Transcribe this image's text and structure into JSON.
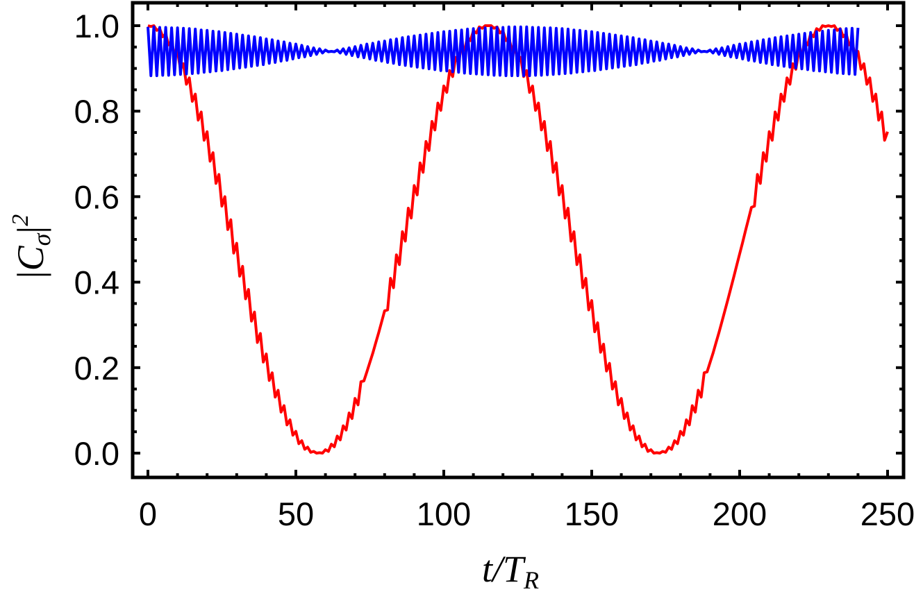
{
  "chart_data": {
    "type": "line",
    "title": "",
    "xlabel": "t/T_R",
    "xlabel_parts": {
      "main": "t/T",
      "sub": "R"
    },
    "ylabel": "|C_σ|^2",
    "ylabel_parts": {
      "bar_left": "|",
      "main": "C",
      "sub": "σ",
      "bar_right": "|",
      "sup": "2"
    },
    "xlim": [
      -5,
      255
    ],
    "ylim": [
      -0.055,
      1.05
    ],
    "x_major_ticks": [
      0,
      50,
      100,
      150,
      200,
      250
    ],
    "x_tick_labels": [
      "0",
      "50",
      "100",
      "150",
      "200",
      "250"
    ],
    "x_minor_step": 10,
    "y_major_ticks": [
      0.0,
      0.2,
      0.4,
      0.6,
      0.8,
      1.0
    ],
    "y_tick_labels": [
      "0.0",
      "0.2",
      "0.4",
      "0.6",
      "0.8",
      "1.0"
    ],
    "y_minor_step": 0.05,
    "grid": false,
    "legend": "none",
    "x_start": 0,
    "x_step": 1,
    "series": [
      {
        "color": "#ff0000",
        "values": [
          1.0,
          0.998,
          1.0,
          0.989,
          0.993,
          0.974,
          0.981,
          0.955,
          0.964,
          0.929,
          0.94,
          0.898,
          0.911,
          0.863,
          0.878,
          0.823,
          0.84,
          0.779,
          0.798,
          0.732,
          0.752,
          0.683,
          0.703,
          0.631,
          0.652,
          0.578,
          0.6,
          0.523,
          0.546,
          0.468,
          0.491,
          0.414,
          0.437,
          0.361,
          0.383,
          0.309,
          0.33,
          0.259,
          0.28,
          0.213,
          0.232,
          0.17,
          0.188,
          0.131,
          0.147,
          0.096,
          0.111,
          0.066,
          0.078,
          0.042,
          0.051,
          0.022,
          0.029,
          0.009,
          0.014,
          0.002,
          0.004,
          0.0,
          0.001,
          0.0,
          0.008,
          0.004,
          0.021,
          0.015,
          0.04,
          0.031,
          0.064,
          0.054,
          0.094,
          0.081,
          0.128,
          0.113,
          0.167,
          0.169,
          0.19,
          0.212,
          0.234,
          0.258,
          0.282,
          0.307,
          0.333,
          0.335,
          0.409,
          0.387,
          0.464,
          0.441,
          0.518,
          0.496,
          0.573,
          0.55,
          0.626,
          0.604,
          0.679,
          0.657,
          0.729,
          0.708,
          0.776,
          0.756,
          0.819,
          0.802,
          0.859,
          0.844,
          0.895,
          0.881,
          0.926,
          0.914,
          0.953,
          0.942,
          0.973,
          0.965,
          0.988,
          0.983,
          0.997,
          0.994,
          1.0,
          1.0,
          1.0,
          0.994,
          0.997,
          0.983,
          0.988,
          0.965,
          0.973,
          0.942,
          0.953,
          0.914,
          0.926,
          0.881,
          0.895,
          0.844,
          0.859,
          0.802,
          0.819,
          0.756,
          0.776,
          0.708,
          0.729,
          0.657,
          0.679,
          0.604,
          0.626,
          0.55,
          0.573,
          0.496,
          0.518,
          0.441,
          0.464,
          0.387,
          0.409,
          0.335,
          0.357,
          0.284,
          0.305,
          0.236,
          0.255,
          0.192,
          0.21,
          0.15,
          0.167,
          0.113,
          0.128,
          0.081,
          0.094,
          0.054,
          0.064,
          0.031,
          0.04,
          0.015,
          0.021,
          0.004,
          0.008,
          0.0,
          0.001,
          0.0,
          0.004,
          0.002,
          0.014,
          0.009,
          0.029,
          0.022,
          0.051,
          0.042,
          0.078,
          0.066,
          0.111,
          0.096,
          0.147,
          0.131,
          0.188,
          0.19,
          0.212,
          0.234,
          0.258,
          0.282,
          0.307,
          0.333,
          0.359,
          0.385,
          0.412,
          0.439,
          0.466,
          0.493,
          0.521,
          0.548,
          0.575,
          0.578,
          0.652,
          0.631,
          0.703,
          0.683,
          0.752,
          0.732,
          0.798,
          0.779,
          0.84,
          0.823,
          0.878,
          0.863,
          0.911,
          0.898,
          0.94,
          0.929,
          0.964,
          0.955,
          0.981,
          0.974,
          0.993,
          0.989,
          1.0,
          0.998,
          1.0,
          0.998,
          1.0,
          0.989,
          0.993,
          0.974,
          0.981,
          0.955,
          0.964,
          0.929,
          0.94,
          0.898,
          0.911,
          0.863,
          0.878,
          0.823,
          0.84,
          0.779,
          0.798,
          0.732,
          0.752
        ]
      },
      {
        "color": "#0000ff",
        "values": [
          0.997,
          0.883,
          0.997,
          0.883,
          0.996,
          0.884,
          0.996,
          0.884,
          0.995,
          0.885,
          0.995,
          0.886,
          0.994,
          0.887,
          0.993,
          0.888,
          0.992,
          0.889,
          0.99,
          0.891,
          0.989,
          0.892,
          0.987,
          0.894,
          0.986,
          0.895,
          0.984,
          0.897,
          0.982,
          0.899,
          0.98,
          0.901,
          0.978,
          0.903,
          0.976,
          0.905,
          0.974,
          0.907,
          0.972,
          0.909,
          0.969,
          0.912,
          0.967,
          0.914,
          0.964,
          0.917,
          0.962,
          0.919,
          0.959,
          0.922,
          0.957,
          0.925,
          0.954,
          0.927,
          0.951,
          0.93,
          0.948,
          0.933,
          0.946,
          0.936,
          0.943,
          0.939,
          0.94,
          0.939,
          0.943,
          0.936,
          0.946,
          0.933,
          0.948,
          0.93,
          0.951,
          0.927,
          0.954,
          0.925,
          0.957,
          0.922,
          0.959,
          0.919,
          0.962,
          0.917,
          0.964,
          0.914,
          0.967,
          0.912,
          0.969,
          0.909,
          0.972,
          0.907,
          0.974,
          0.905,
          0.976,
          0.903,
          0.978,
          0.901,
          0.98,
          0.899,
          0.982,
          0.897,
          0.984,
          0.895,
          0.986,
          0.894,
          0.987,
          0.892,
          0.989,
          0.891,
          0.99,
          0.889,
          0.992,
          0.888,
          0.993,
          0.887,
          0.994,
          0.886,
          0.995,
          0.885,
          0.995,
          0.884,
          0.996,
          0.884,
          0.996,
          0.883,
          0.997,
          0.883,
          0.997,
          0.883,
          0.997,
          0.883,
          0.997,
          0.883,
          0.996,
          0.884,
          0.996,
          0.884,
          0.995,
          0.885,
          0.995,
          0.886,
          0.994,
          0.887,
          0.993,
          0.888,
          0.992,
          0.889,
          0.99,
          0.891,
          0.989,
          0.892,
          0.987,
          0.894,
          0.986,
          0.895,
          0.984,
          0.897,
          0.982,
          0.899,
          0.98,
          0.901,
          0.978,
          0.903,
          0.976,
          0.905,
          0.974,
          0.907,
          0.972,
          0.909,
          0.969,
          0.912,
          0.967,
          0.914,
          0.964,
          0.917,
          0.962,
          0.919,
          0.959,
          0.922,
          0.957,
          0.925,
          0.954,
          0.927,
          0.951,
          0.93,
          0.948,
          0.933,
          0.946,
          0.936,
          0.943,
          0.939,
          0.94,
          0.939,
          0.943,
          0.936,
          0.946,
          0.933,
          0.948,
          0.93,
          0.951,
          0.927,
          0.954,
          0.925,
          0.957,
          0.922,
          0.959,
          0.919,
          0.962,
          0.917,
          0.964,
          0.914,
          0.967,
          0.912,
          0.969,
          0.909,
          0.972,
          0.907,
          0.974,
          0.905,
          0.976,
          0.903,
          0.978,
          0.901,
          0.98,
          0.899,
          0.982,
          0.897,
          0.984,
          0.895,
          0.986,
          0.894,
          0.987,
          0.892,
          0.989,
          0.891,
          0.99,
          0.889,
          0.992,
          0.888,
          0.993,
          0.887,
          0.994,
          0.886,
          0.995
        ]
      }
    ]
  }
}
